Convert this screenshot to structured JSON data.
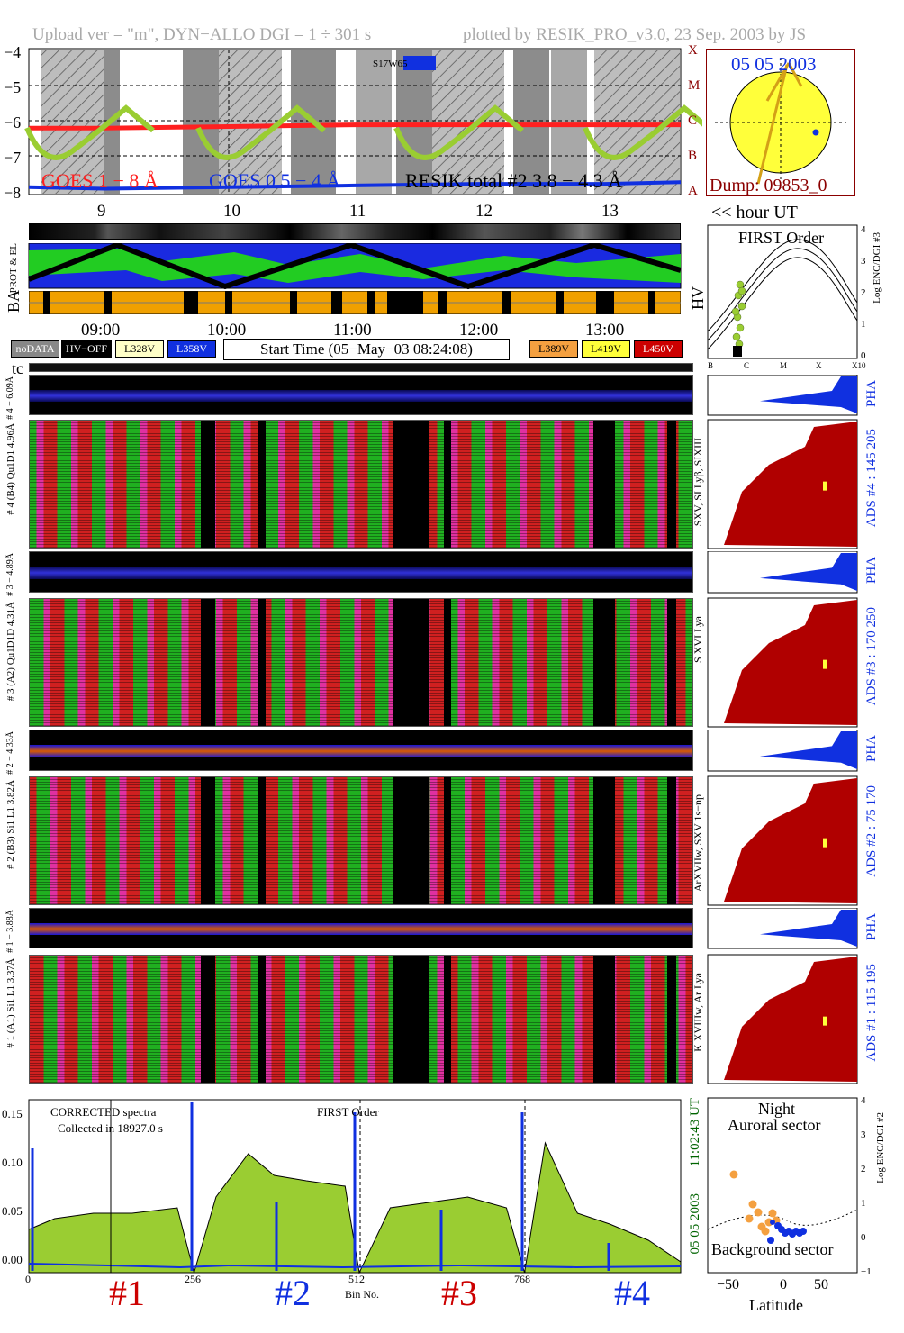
{
  "header": {
    "left": "Upload ver = \"m\", DYN−ALLO DGI =   1 ÷ 301 s",
    "right": "plotted by RESIK_PRO_v3.0, 23 Sep. 2003 by JS"
  },
  "goes": {
    "y_ticks": [
      "−4",
      "−5",
      "−6",
      "−7",
      "−8"
    ],
    "class_labels": [
      "X",
      "M",
      "C",
      "B",
      "A"
    ],
    "region": "S17W65",
    "legend_goes1": "GOES 1 − 8 Å",
    "legend_goes05": "GOES 0.5 − 4 Å",
    "legend_resik": "RESIK total #2  3.8 − 4.3 Å",
    "hour_ticks": [
      "9",
      "10",
      "11",
      "12",
      "13"
    ],
    "colors": {
      "goes1": "#ff2020",
      "goes05": "#1030e0",
      "resik": "#9acd32"
    }
  },
  "sun": {
    "date": "05 05 2003",
    "dump": "Dump: 09853_0"
  },
  "hour_ut_label": "<< hour UT",
  "strip_labels": {
    "prot": "PROT & EL",
    "ba": "BA",
    "hv": "HV"
  },
  "time_ticks": [
    "09:00",
    "10:00",
    "11:00",
    "12:00",
    "13:00"
  ],
  "legend": {
    "nodata": "noDATA",
    "hvoff": "HV−OFF",
    "l328": "L328V",
    "l358": "L358V",
    "l389": "L389V",
    "l419": "L419V",
    "l450": "L450V",
    "start_time": "Start Time (05−May−03 08:24:08)"
  },
  "first_order": {
    "title": "FIRST Order",
    "ylabel": "Log ENC/DGI #3",
    "y_ticks": [
      "4",
      "3",
      "2",
      "1",
      "0"
    ],
    "x_ticks": [
      "B",
      "C",
      "M",
      "X",
      "X10"
    ]
  },
  "tc_label": "tc",
  "channels": [
    {
      "pha_label": "# 4 − 6.09Å",
      "spec_label": "# 4 (B4) Qu1D1 4.96Å",
      "line_label": "SXV, SI Lyβ, SIXIII",
      "ads": "ADS #4 :  145 205",
      "pha_right": "PHA"
    },
    {
      "pha_label": "# 3 − 4.89Å",
      "spec_label": "# 3 (A2) Qu1D1D 4.31Å",
      "line_label": "S XVI Lya",
      "ads": "ADS #3 :  170 250",
      "pha_right": "PHA"
    },
    {
      "pha_label": "# 2 − 4.33Å",
      "spec_label": "# 2 (B3) Si1 L1  3.82Å",
      "line_label": "ArXVIIw, SXV 1s−np",
      "ads": "ADS #2 :   75 170",
      "pha_right": "PHA"
    },
    {
      "pha_label": "# 1 − 3.88Å",
      "spec_label": "# 1 (A1) Si1 L1  3.37Å",
      "line_label": "K XVIIIw, Ar Lya",
      "ads": "ADS #1 :  115 195",
      "pha_right": "PHA"
    }
  ],
  "spectrum": {
    "note1": "CORRECTED spectra",
    "note2": "Collected in 18927.0 s",
    "order": "FIRST Order",
    "time": "11:02:43 UT",
    "date": "05 05 2003",
    "y_ticks": [
      "0.15",
      "0.10",
      "0.05",
      "0.00"
    ],
    "x_ticks": [
      "0",
      "256",
      "512",
      "768"
    ],
    "xlabel": "Bin No.",
    "sectors": [
      "#1",
      "#2",
      "#3",
      "#4"
    ],
    "sector_colors": [
      "#cc0000",
      "#1030e0",
      "#cc0000",
      "#1030e0"
    ]
  },
  "auroral": {
    "title1": "Night",
    "title2": "Auroral sector",
    "bottom": "Background sector",
    "xlabel": "Latitude",
    "ylabel": "Log ENC/DGI #2",
    "x_ticks": [
      "−50",
      "0",
      "50"
    ],
    "y_ticks": [
      "4",
      "3",
      "2",
      "1",
      "0",
      "−1"
    ]
  },
  "chart_data": [
    {
      "type": "line",
      "title": "",
      "xlabel": "hour UT",
      "ylabel": "",
      "x_ticks": [
        9,
        10,
        11,
        12,
        13
      ],
      "ylim": [
        -8.2,
        -3.8
      ],
      "series": [
        {
          "name": "GOES 1 − 8 Å",
          "x": [
            8.4,
            9.0,
            10.0,
            11.0,
            12.0,
            13.0,
            13.6
          ],
          "values": [
            -6.2,
            -6.2,
            -6.15,
            -6.1,
            -6.1,
            -6.1,
            -6.1
          ]
        },
        {
          "name": "GOES 0.5 − 4 Å",
          "x": [
            8.4,
            9.0,
            10.0,
            11.0,
            12.0,
            13.0,
            13.6
          ],
          "values": [
            -8.0,
            -8.05,
            -8.0,
            -7.95,
            -7.9,
            -7.9,
            -7.85
          ]
        }
      ]
    },
    {
      "type": "area",
      "title": "",
      "xlabel": "Bin No.",
      "ylabel": "",
      "ylim": [
        0,
        0.16
      ],
      "x_ticks": [
        0,
        256,
        512,
        768
      ],
      "series": [
        {
          "name": "",
          "x": [
            0,
            40,
            100,
            160,
            230,
            256,
            290,
            340,
            380,
            430,
            490,
            512,
            560,
            620,
            680,
            740,
            768,
            800,
            850,
            900,
            960,
            1010
          ],
          "values": [
            0.04,
            0.05,
            0.055,
            0.055,
            0.06,
            0.0,
            0.07,
            0.11,
            0.09,
            0.085,
            0.08,
            0.0,
            0.06,
            0.065,
            0.07,
            0.06,
            0.0,
            0.12,
            0.055,
            0.045,
            0.03,
            0.01
          ]
        }
      ]
    }
  ]
}
